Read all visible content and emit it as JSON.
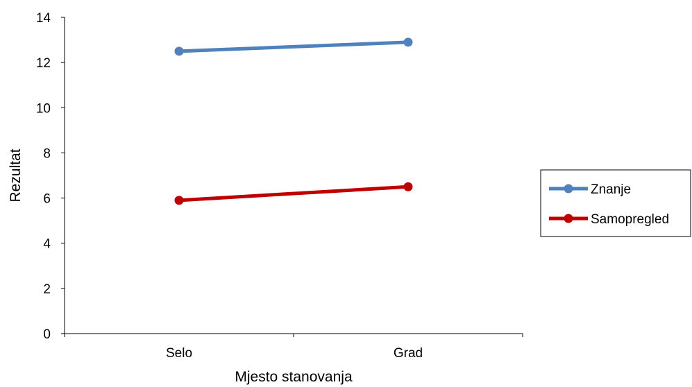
{
  "chart_data": {
    "type": "line",
    "title": "",
    "xlabel": "Mjesto stanovanja",
    "ylabel": "Rezultat",
    "categories": [
      "Selo",
      "Grad"
    ],
    "ylim": [
      0,
      14
    ],
    "yticks": [
      "0",
      "2",
      "4",
      "6",
      "8",
      "10",
      "12",
      "14"
    ],
    "grid": false,
    "legend": {
      "placement": "right",
      "entries": [
        "Znanje",
        "Samopregled"
      ]
    },
    "series": [
      {
        "name": "Znanje",
        "values": [
          12.5,
          12.9
        ],
        "color": "#4f81bd"
      },
      {
        "name": "Samopregled",
        "values": [
          5.9,
          6.5
        ],
        "color": "#c00000"
      }
    ]
  }
}
